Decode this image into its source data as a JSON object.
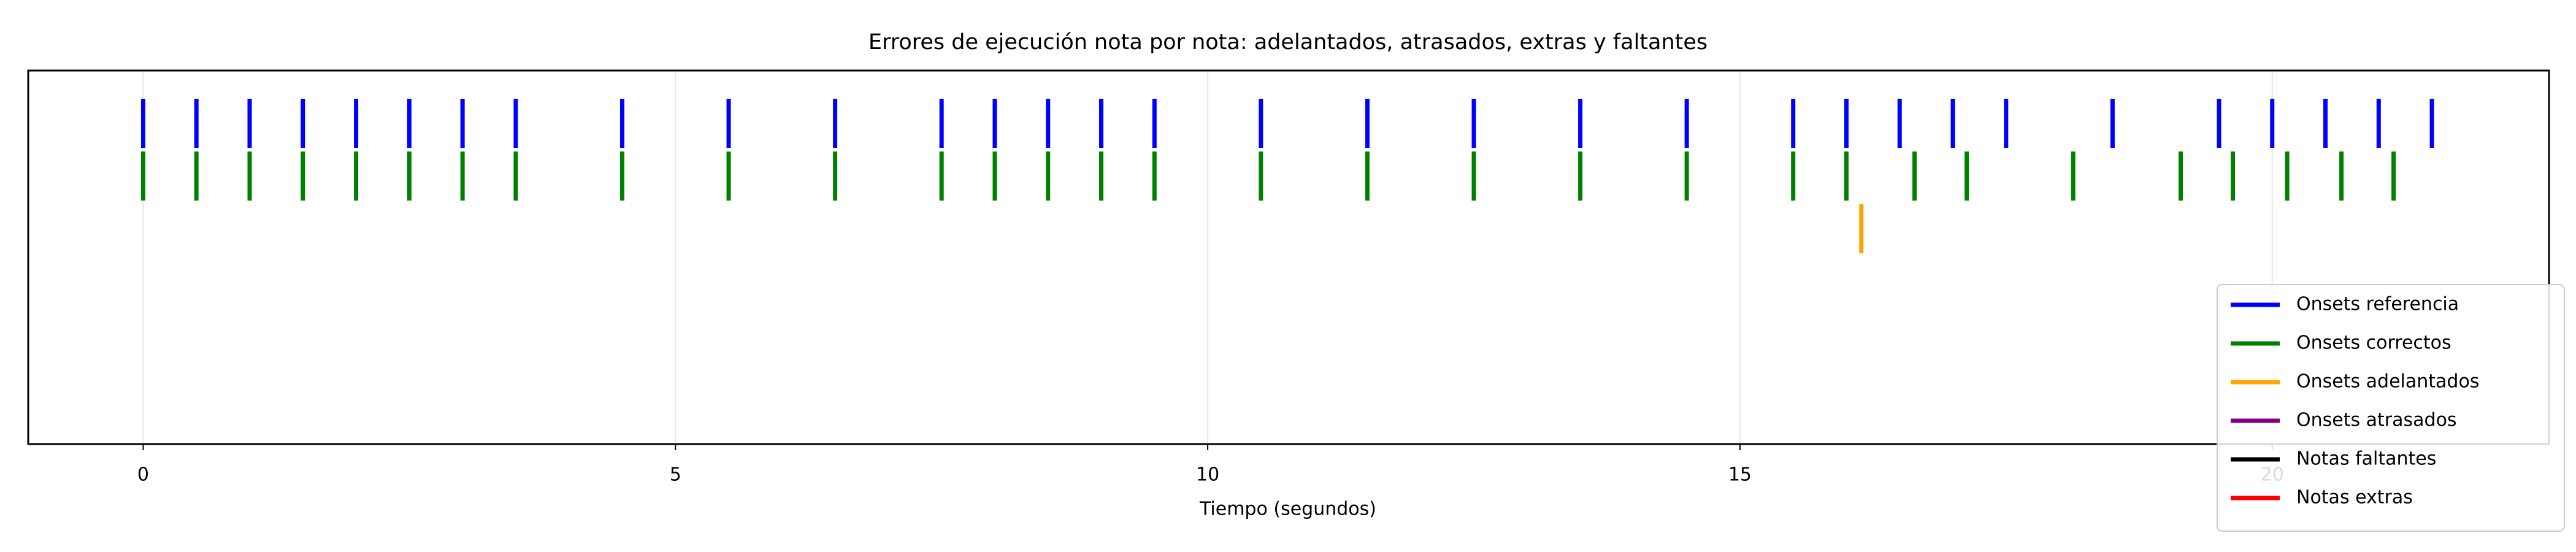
{
  "chart_data": {
    "type": "eventplot",
    "title": "Errores de ejecución nota por nota: adelantados, atrasados, extras y faltantes",
    "x_label": "Tiempo (segundos)",
    "xlim": [
      -1.08,
      22.6
    ],
    "xticks": [
      0,
      5,
      10,
      15,
      20
    ],
    "grid": true,
    "legend": "lower right",
    "series": [
      {
        "name": "Onsets referencia",
        "color": "#0000ff",
        "values": [
          0,
          0.5,
          1.0,
          1.5,
          2.0,
          2.5,
          3.0,
          3.5,
          4.5,
          5.5,
          6.5,
          7.5,
          8.0,
          8.5,
          9.0,
          9.5,
          10.5,
          11.5,
          12.5,
          13.5,
          14.5,
          15.5,
          16.0,
          16.5,
          17.0,
          17.5,
          18.5,
          19.5,
          20.0,
          20.5,
          21.0,
          21.5
        ]
      },
      {
        "name": "Onsets correctos",
        "color": "#008000",
        "values": [
          0,
          0.5,
          1.0,
          1.5,
          2.0,
          2.5,
          3.0,
          3.5,
          4.5,
          5.5,
          6.5,
          7.5,
          8.0,
          8.5,
          9.0,
          9.5,
          10.5,
          11.5,
          12.5,
          13.5,
          14.5,
          15.5,
          16.0,
          16.64,
          17.13,
          18.13,
          19.14,
          19.63,
          20.14,
          20.65,
          21.14
        ]
      },
      {
        "name": "Onsets adelantados",
        "color": "#ffa500",
        "values": [
          16.14
        ]
      },
      {
        "name": "Onsets atrasados",
        "color": "#800080",
        "values": []
      },
      {
        "name": "Notas faltantes",
        "color": "#000000",
        "values": []
      },
      {
        "name": "Notas extras",
        "color": "#ff0000",
        "values": []
      }
    ]
  }
}
